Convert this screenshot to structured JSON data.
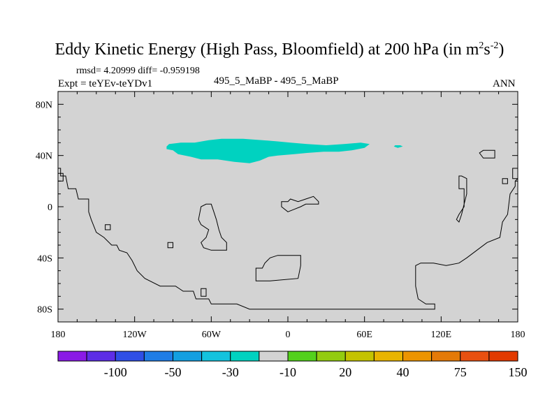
{
  "header": {
    "title_main": "Eddy Kinetic Energy (High Pass, Bloomfield) at 200 hPa (in m",
    "title_sup1": "2",
    "title_mid": "s",
    "title_sup2": "-2",
    "title_end": ")",
    "stats": "rmsd= 4.20999 diff= -0.959198",
    "expt": "Expt = teYEv-teYDv1",
    "case": "495_5_MaBP - 495_5_MaBP",
    "period": "ANN"
  },
  "chart_data": {
    "type": "heatmap",
    "x_tick_labels": [
      "180",
      "120W",
      "60W",
      "0",
      "60E",
      "120E",
      "180"
    ],
    "x_ticks": [
      -180,
      -120,
      -60,
      0,
      60,
      120,
      180
    ],
    "y_tick_labels": [
      "80N",
      "40N",
      "0",
      "40S",
      "80S"
    ],
    "y_ticks": [
      80,
      40,
      0,
      -40,
      -80
    ],
    "xlim": [
      -180,
      180
    ],
    "ylim": [
      -90,
      90
    ],
    "background_value_color": "#d3d3d3",
    "continent_line_color": "#000000",
    "colorbar": {
      "colors": [
        "#8a1ae6",
        "#5d2ee6",
        "#2f4fe6",
        "#1f7de6",
        "#139fe1",
        "#13c3de",
        "#00d2c0",
        "#d3d3d3",
        "#53d11c",
        "#93cc10",
        "#c4c300",
        "#e8b400",
        "#ec9400",
        "#e47a08",
        "#e85010",
        "#e23a00"
      ],
      "labels": [
        "-100",
        "-50",
        "-30",
        "-10",
        "20",
        "40",
        "75",
        "150"
      ],
      "label_boundaries": [
        2,
        4,
        6,
        8,
        10,
        12,
        14,
        16
      ]
    },
    "regions": [
      {
        "value_range": "-30 to -10",
        "color": "#00d2c0",
        "outline_lonlat": [
          [
            -95,
            47
          ],
          [
            -93,
            49
          ],
          [
            -84,
            50
          ],
          [
            -73,
            50
          ],
          [
            -62,
            52
          ],
          [
            -52,
            53
          ],
          [
            -35,
            53
          ],
          [
            -20,
            52
          ],
          [
            -8,
            51
          ],
          [
            2,
            50
          ],
          [
            15,
            49
          ],
          [
            30,
            48
          ],
          [
            44,
            49
          ],
          [
            57,
            50
          ],
          [
            64,
            49
          ],
          [
            60,
            46
          ],
          [
            50,
            44
          ],
          [
            40,
            43
          ],
          [
            28,
            43
          ],
          [
            15,
            42
          ],
          [
            5,
            41
          ],
          [
            -8,
            40
          ],
          [
            -15,
            39
          ],
          [
            -22,
            36
          ],
          [
            -30,
            34
          ],
          [
            -42,
            35
          ],
          [
            -55,
            37
          ],
          [
            -68,
            37
          ],
          [
            -76,
            39
          ],
          [
            -86,
            41
          ],
          [
            -90,
            44
          ],
          [
            -95,
            45
          ]
        ]
      },
      {
        "value_range": "-30 to -10",
        "color": "#00d2c0",
        "outline_lonlat": [
          [
            84,
            48
          ],
          [
            88,
            48
          ],
          [
            90,
            47
          ],
          [
            86,
            46
          ],
          [
            83,
            47
          ]
        ]
      }
    ],
    "continents_lonlat": [
      [
        [
          -180,
          30
        ],
        [
          -178,
          30
        ],
        [
          -178,
          24
        ],
        [
          -174,
          24
        ],
        [
          -172,
          14
        ],
        [
          -166,
          14
        ],
        [
          -164,
          6
        ],
        [
          -156,
          6
        ],
        [
          -156,
          -4
        ],
        [
          -154,
          -10
        ],
        [
          -150,
          -20
        ],
        [
          -144,
          -24
        ],
        [
          -138,
          -30
        ],
        [
          -134,
          -30
        ],
        [
          -132,
          -34
        ],
        [
          -126,
          -36
        ],
        [
          -122,
          -42
        ],
        [
          -118,
          -50
        ],
        [
          -112,
          -56
        ],
        [
          -100,
          -62
        ],
        [
          -88,
          -62
        ],
        [
          -82,
          -66
        ],
        [
          -74,
          -66
        ],
        [
          -72,
          -72
        ],
        [
          -62,
          -72
        ],
        [
          -60,
          -76
        ],
        [
          -40,
          -76
        ],
        [
          -30,
          -80
        ],
        [
          115,
          -80
        ],
        [
          115,
          -76
        ],
        [
          108,
          -76
        ],
        [
          102,
          -72
        ],
        [
          100,
          -62
        ],
        [
          100,
          -46
        ],
        [
          104,
          -44
        ],
        [
          114,
          -44
        ],
        [
          124,
          -46
        ],
        [
          134,
          -44
        ],
        [
          140,
          -40
        ],
        [
          148,
          -34
        ],
        [
          156,
          -28
        ],
        [
          166,
          -24
        ],
        [
          168,
          -12
        ],
        [
          172,
          -6
        ],
        [
          174,
          10
        ],
        [
          178,
          16
        ],
        [
          178,
          20
        ],
        [
          180,
          22
        ]
      ],
      [
        [
          -180,
          26
        ],
        [
          -176,
          26
        ],
        [
          -176,
          20
        ],
        [
          -180,
          20
        ]
      ],
      [
        [
          -70,
          -10
        ],
        [
          -68,
          0
        ],
        [
          -64,
          2
        ],
        [
          -60,
          2
        ],
        [
          -58,
          -4
        ],
        [
          -56,
          -10
        ],
        [
          -54,
          -18
        ],
        [
          -52,
          -24
        ],
        [
          -48,
          -28
        ],
        [
          -48,
          -34
        ],
        [
          -52,
          -34
        ],
        [
          -60,
          -34
        ],
        [
          -66,
          -32
        ],
        [
          -68,
          -28
        ],
        [
          -64,
          -24
        ],
        [
          -62,
          -18
        ],
        [
          -68,
          -14
        ]
      ],
      [
        [
          -143,
          -14
        ],
        [
          -139,
          -14
        ],
        [
          -139,
          -18
        ],
        [
          -143,
          -18
        ]
      ],
      [
        [
          -94,
          -28
        ],
        [
          -90,
          -28
        ],
        [
          -90,
          -32
        ],
        [
          -94,
          -32
        ]
      ],
      [
        [
          -68,
          -64
        ],
        [
          -64,
          -64
        ],
        [
          -64,
          -70
        ],
        [
          -68,
          -70
        ]
      ],
      [
        [
          -25,
          -48
        ],
        [
          -20,
          -48
        ],
        [
          -18,
          -44
        ],
        [
          -14,
          -40
        ],
        [
          -8,
          -38
        ],
        [
          10,
          -38
        ],
        [
          10,
          -46
        ],
        [
          8,
          -56
        ],
        [
          -14,
          -58
        ],
        [
          -25,
          -58
        ]
      ],
      [
        [
          -5,
          4
        ],
        [
          0,
          4
        ],
        [
          2,
          6
        ],
        [
          8,
          4
        ],
        [
          14,
          6
        ],
        [
          20,
          8
        ],
        [
          24,
          4
        ],
        [
          24,
          2
        ],
        [
          14,
          2
        ],
        [
          10,
          0
        ],
        [
          5,
          -2
        ],
        [
          0,
          -4
        ],
        [
          -5,
          0
        ]
      ],
      [
        [
          153,
          44
        ],
        [
          162,
          44
        ],
        [
          162,
          38
        ],
        [
          153,
          38
        ],
        [
          150,
          42
        ]
      ],
      [
        [
          134,
          24
        ],
        [
          134,
          14
        ],
        [
          138,
          14
        ],
        [
          138,
          0
        ],
        [
          134,
          -6
        ],
        [
          132,
          -10
        ],
        [
          134,
          -12
        ],
        [
          136,
          -6
        ],
        [
          138,
          2
        ],
        [
          140,
          10
        ],
        [
          140,
          22
        ],
        [
          136,
          24
        ]
      ],
      [
        [
          168,
          22
        ],
        [
          172,
          22
        ],
        [
          172,
          18
        ],
        [
          168,
          18
        ]
      ],
      [
        [
          176,
          30
        ],
        [
          180,
          30
        ],
        [
          180,
          22
        ],
        [
          176,
          22
        ]
      ]
    ]
  }
}
